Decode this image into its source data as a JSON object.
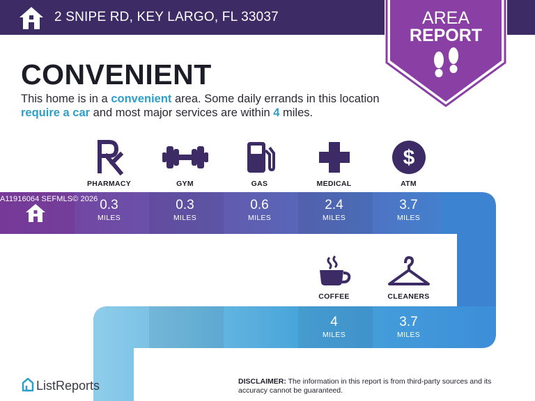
{
  "header": {
    "address": "2 SNIPE RD, KEY LARGO, FL 33037",
    "home_icon": "house-icon"
  },
  "badge": {
    "line1": "AREA",
    "line2": "REPORT",
    "icon": "footprints-icon"
  },
  "headline": "CONVENIENT",
  "summary": {
    "part1": "This home is in a ",
    "hl1": "convenient",
    "part2": " area. Some daily errands in this location ",
    "hl2": "require a car",
    "part3": " and most major services are within ",
    "hl3": "4",
    "part4": " miles."
  },
  "amenities_row1": [
    {
      "label": "PHARMACY",
      "icon": "rx-icon",
      "distance": "0.3",
      "unit": "MILES"
    },
    {
      "label": "GYM",
      "icon": "dumbbell-icon",
      "distance": "0.3",
      "unit": "MILES"
    },
    {
      "label": "GAS",
      "icon": "gas-pump-icon",
      "distance": "0.6",
      "unit": "MILES"
    },
    {
      "label": "MEDICAL",
      "icon": "medical-cross-icon",
      "distance": "2.4",
      "unit": "MILES"
    },
    {
      "label": "ATM",
      "icon": "dollar-coin-icon",
      "distance": "3.7",
      "unit": "MILES"
    }
  ],
  "amenities_row2": [
    {
      "label": "COFFEE",
      "icon": "coffee-cup-icon",
      "distance": "4",
      "unit": "MILES"
    },
    {
      "label": "CLEANERS",
      "icon": "hanger-icon",
      "distance": "3.7",
      "unit": "MILES"
    }
  ],
  "watermark": "A11916064  SEFMLS© 2026",
  "brand": {
    "name": "ListReports",
    "icon": "listreports-logo-icon"
  },
  "disclaimer": {
    "label": "DISCLAIMER:",
    "text": " The information in this report is from third-party sources and its accuracy cannot be guaranteed."
  },
  "colors": {
    "header_bg": "#3d2b66",
    "badge_purple": "#8a3fa5",
    "accent_blue": "#2e9fc6",
    "road_purple": "#7a3e9e",
    "road_blue": "#3c8fd6",
    "road_light_blue": "#8ccbe9"
  }
}
